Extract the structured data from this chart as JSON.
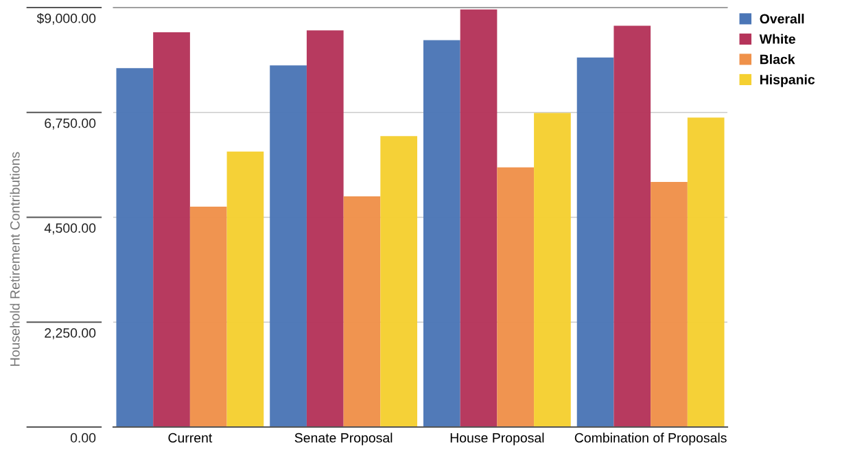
{
  "chart_data": {
    "type": "bar",
    "ylabel": "Household Retirement Contributions",
    "categories": [
      "Current",
      "Senate Proposal",
      "House Proposal",
      "Combination of Proposals"
    ],
    "series": [
      {
        "name": "Overall",
        "color": "#4b76b6",
        "values": [
          7700,
          7760,
          8300,
          7930
        ]
      },
      {
        "name": "White",
        "color": "#b5345a",
        "values": [
          8470,
          8510,
          8960,
          8610
        ]
      },
      {
        "name": "Black",
        "color": "#ef914a",
        "values": [
          4730,
          4950,
          5570,
          5260
        ]
      },
      {
        "name": "Hispanic",
        "color": "#f5d031",
        "values": [
          5910,
          6240,
          6740,
          6640
        ]
      }
    ],
    "ylim": [
      0,
      9000
    ],
    "yticks": [
      {
        "value": 0,
        "label": "0.00"
      },
      {
        "value": 2250,
        "label": "2,250.00"
      },
      {
        "value": 4500,
        "label": "4,500.00"
      },
      {
        "value": 6750,
        "label": "6,750.00"
      },
      {
        "value": 9000,
        "label": "$9,000.00"
      }
    ],
    "grid": "y",
    "legend": "top right"
  }
}
